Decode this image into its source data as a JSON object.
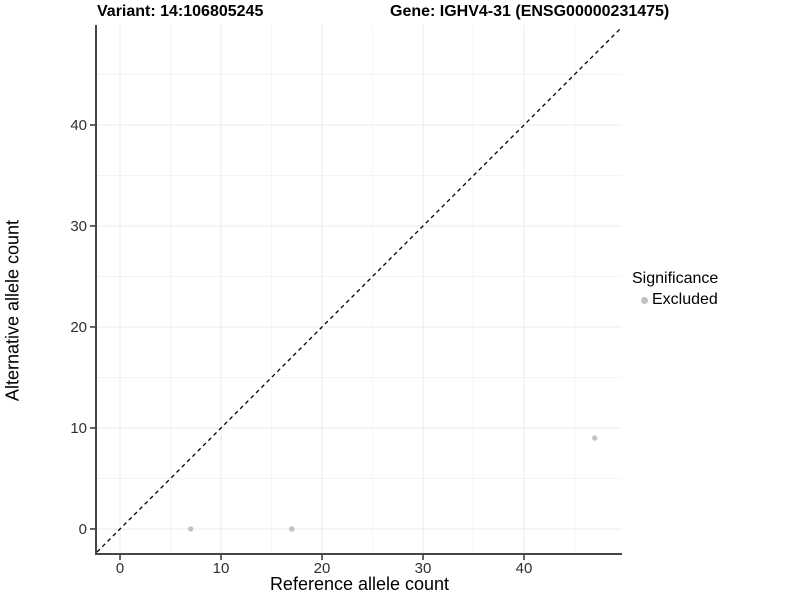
{
  "chart_data": {
    "type": "scatter",
    "title_left": "Variant: 14:106805245",
    "title_right": "Gene: IGHV4-31 (ENSG00000231475)",
    "xlabel": "Reference allele count",
    "ylabel": "Alternative allele count",
    "xlim": [
      -2.28,
      49.7
    ],
    "ylim": [
      -2.48,
      49.9
    ],
    "x_ticks": [
      0,
      10,
      20,
      30,
      40
    ],
    "y_ticks": [
      0,
      10,
      20,
      30,
      40
    ],
    "x_minor_ticks": [
      5,
      15,
      25,
      35,
      45
    ],
    "y_minor_ticks": [
      5,
      15,
      25,
      35,
      45
    ],
    "grid": true,
    "series": [
      {
        "name": "Excluded",
        "marker": "circle",
        "color": "#c2c2c2",
        "points": [
          {
            "x": 7,
            "y": 0
          },
          {
            "x": 17,
            "y": 0
          },
          {
            "x": 47,
            "y": 9
          }
        ]
      }
    ],
    "reference_line": {
      "kind": "identity",
      "slope": 1,
      "intercept": 0,
      "style": "dashed",
      "color": "#000000"
    },
    "legend": {
      "title": "Significance",
      "position": "right",
      "items": [
        {
          "label": "Excluded",
          "color": "#c2c2c2",
          "marker": "circle"
        }
      ]
    }
  },
  "colors": {
    "background": "#ffffff",
    "grid_major": "#ebebeb",
    "grid_minor": "#f4f4f4",
    "axis_line": "#464646",
    "tick_mark": "#333333",
    "tick_label": "#303030",
    "point": "#c2c2c2"
  }
}
